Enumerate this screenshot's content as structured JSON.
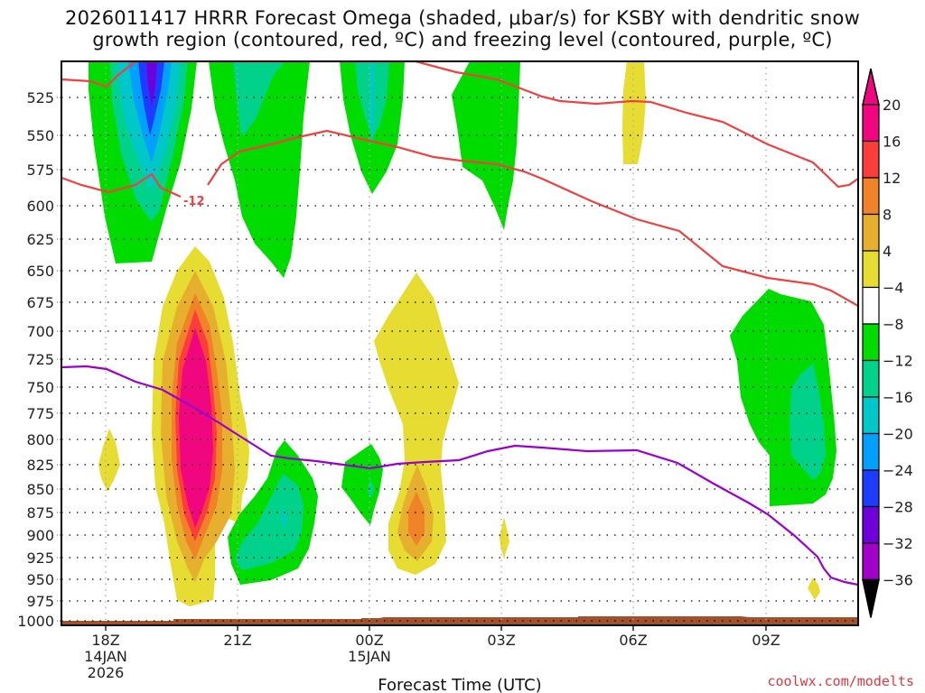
{
  "chart_data": {
    "type": "heatmap",
    "title_line1": "2026011417 HRRR Forecast Omega (shaded, μbar/s) for KSBY with dendritic snow",
    "title_line2": "growth region (contoured, red, ºC) and freezing level (contoured, purple, ºC)",
    "xlabel": "Forecast Time (UTC)",
    "ylabel": "",
    "credit": "coolwx.com/modelts",
    "x_ticks": [
      {
        "label": "18Z",
        "sub1": "14JAN",
        "sub2": "2026",
        "hour": 18
      },
      {
        "label": "21Z",
        "sub1": "",
        "sub2": "",
        "hour": 21
      },
      {
        "label": "00Z",
        "sub1": "15JAN",
        "sub2": "",
        "hour": 24
      },
      {
        "label": "03Z",
        "sub1": "",
        "sub2": "",
        "hour": 27
      },
      {
        "label": "06Z",
        "sub1": "",
        "sub2": "",
        "hour": 30
      },
      {
        "label": "09Z",
        "sub1": "",
        "sub2": "",
        "hour": 33
      }
    ],
    "x_range_hours": [
      17,
      35.1
    ],
    "y_ticks": [
      "525",
      "550",
      "575",
      "600",
      "625",
      "650",
      "675",
      "700",
      "725",
      "750",
      "775",
      "800",
      "825",
      "850",
      "875",
      "900",
      "925",
      "950",
      "975",
      "1000"
    ],
    "y_range_mb": [
      505,
      1005
    ],
    "grid": true,
    "colorbar": {
      "placement": "right",
      "levels": [
        {
          "label": "20",
          "color": "#f0067f"
        },
        {
          "label": "16",
          "color": "#fd3c3c"
        },
        {
          "label": "12",
          "color": "#f08228"
        },
        {
          "label": "8",
          "color": "#e6af2d"
        },
        {
          "label": "4",
          "color": "#e6dc32"
        },
        {
          "label": "-4",
          "color": "#ffffff"
        },
        {
          "label": "-8",
          "color": "#00dc00"
        },
        {
          "label": "-12",
          "color": "#00d28c"
        },
        {
          "label": "-16",
          "color": "#00c8c8"
        },
        {
          "label": "-20",
          "color": "#00a0ff"
        },
        {
          "label": "-24",
          "color": "#1e3cff"
        },
        {
          "label": "-28",
          "color": "#6e00dc"
        },
        {
          "label": "-32",
          "color": "#a000c8"
        },
        {
          "label": "-36",
          "color": "#a0a0a0"
        }
      ],
      "above_max_color": "#f0067f",
      "below_min_color": "#000000"
    },
    "contours": [
      {
        "name": "dendritic growth upper (-17C)",
        "color": "#f04040",
        "label": ""
      },
      {
        "name": "dendritic growth lower (-12C)",
        "color": "#f04040",
        "label": "-12"
      },
      {
        "name": "freezing level (0C)",
        "color": "#9b00d0",
        "label": ""
      }
    ],
    "terrain_color": "#a0522d",
    "features": [
      {
        "type": "ascent",
        "center_hour": 19.0,
        "top_mb": 505,
        "bottom_mb": 648,
        "min_omega": -28
      },
      {
        "type": "ascent",
        "center_hour": 21.5,
        "top_mb": 505,
        "bottom_mb": 655,
        "min_omega": -12
      },
      {
        "type": "ascent",
        "center_hour": 24.0,
        "top_mb": 505,
        "bottom_mb": 590,
        "min_omega": -16
      },
      {
        "type": "ascent",
        "center_hour": 26.8,
        "top_mb": 505,
        "bottom_mb": 620,
        "min_omega": -8
      },
      {
        "type": "descent",
        "center_hour": 20.0,
        "top_mb": 635,
        "bottom_mb": 985,
        "max_omega": 20
      },
      {
        "type": "descent",
        "center_hour": 25.0,
        "top_mb": 655,
        "bottom_mb": 935,
        "max_omega": 12
      },
      {
        "type": "ascent",
        "center_hour": 22.0,
        "top_mb": 800,
        "bottom_mb": 960,
        "min_omega": -16
      },
      {
        "type": "ascent",
        "center_hour": 24.0,
        "top_mb": 805,
        "bottom_mb": 885,
        "min_omega": -12
      },
      {
        "type": "ascent",
        "center_hour": 33.5,
        "top_mb": 665,
        "bottom_mb": 865,
        "min_omega": -12
      },
      {
        "type": "descent",
        "center_hour": 30.0,
        "top_mb": 505,
        "bottom_mb": 575,
        "max_omega": 8
      },
      {
        "type": "descent",
        "center_hour": 18.0,
        "top_mb": 790,
        "bottom_mb": 850,
        "max_omega": 8
      },
      {
        "type": "descent",
        "center_hour": 27.0,
        "top_mb": 880,
        "bottom_mb": 920,
        "max_omega": 8
      },
      {
        "type": "descent",
        "center_hour": 34.0,
        "top_mb": 960,
        "bottom_mb": 980,
        "max_omega": 8
      }
    ]
  }
}
